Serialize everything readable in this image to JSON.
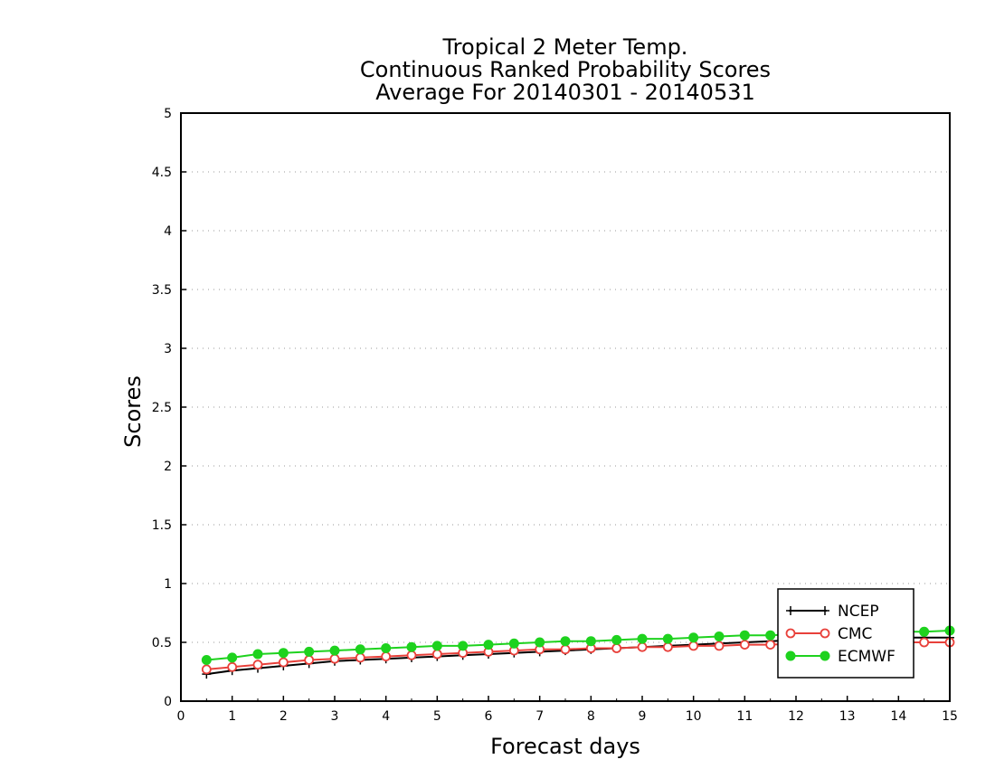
{
  "chart_data": {
    "type": "line",
    "title": [
      "Tropical 2 Meter Temp.",
      "Continuous Ranked Probability Scores",
      "Average For 20140301 - 20140531"
    ],
    "xlabel": "Forecast days",
    "ylabel": "Scores",
    "xlim": [
      0,
      15
    ],
    "ylim": [
      0,
      5
    ],
    "xticks": [
      0,
      1,
      2,
      3,
      4,
      5,
      6,
      7,
      8,
      9,
      10,
      11,
      12,
      13,
      14,
      15
    ],
    "yticks": [
      0,
      0.5,
      1,
      1.5,
      2,
      2.5,
      3,
      3.5,
      4,
      4.5,
      5
    ],
    "ytick_labels": [
      "0",
      "0.5",
      "1",
      "1.5",
      "2",
      "2.5",
      "3",
      "3.5",
      "4",
      "4.5",
      "5"
    ],
    "grid": "horizontal dotted",
    "legend_position": "bottom-right",
    "x": [
      0.5,
      1,
      1.5,
      2,
      2.5,
      3,
      3.5,
      4,
      4.5,
      5,
      5.5,
      6,
      6.5,
      7,
      7.5,
      8,
      8.5,
      9,
      9.5,
      10,
      10.5,
      11,
      11.5,
      12,
      12.5,
      13,
      13.5,
      14,
      14.5,
      15
    ],
    "series": [
      {
        "name": "NCEP",
        "color": "#000000",
        "marker": "plus",
        "values": [
          0.23,
          0.26,
          0.28,
          0.3,
          0.32,
          0.34,
          0.35,
          0.36,
          0.37,
          0.38,
          0.39,
          0.4,
          0.41,
          0.42,
          0.43,
          0.44,
          0.45,
          0.46,
          0.47,
          0.48,
          0.49,
          0.5,
          0.51,
          0.52,
          0.52,
          0.53,
          0.53,
          0.54,
          0.54,
          0.54
        ]
      },
      {
        "name": "CMC",
        "color": "#e8403a",
        "marker": "open-circle",
        "values": [
          0.27,
          0.29,
          0.31,
          0.33,
          0.35,
          0.36,
          0.37,
          0.38,
          0.39,
          0.4,
          0.41,
          0.42,
          0.43,
          0.44,
          0.44,
          0.45,
          0.45,
          0.46,
          0.46,
          0.47,
          0.47,
          0.48,
          0.48,
          0.49,
          0.49,
          0.5,
          0.5,
          0.5,
          0.5,
          0.5
        ]
      },
      {
        "name": "ECMWF",
        "color": "#1ed21e",
        "marker": "filled-circle",
        "values": [
          0.35,
          0.37,
          0.4,
          0.41,
          0.42,
          0.43,
          0.44,
          0.45,
          0.46,
          0.47,
          0.47,
          0.48,
          0.49,
          0.5,
          0.51,
          0.51,
          0.52,
          0.53,
          0.53,
          0.54,
          0.55,
          0.56,
          0.56,
          0.57,
          0.57,
          0.58,
          0.58,
          0.59,
          0.59,
          0.6
        ]
      }
    ]
  }
}
